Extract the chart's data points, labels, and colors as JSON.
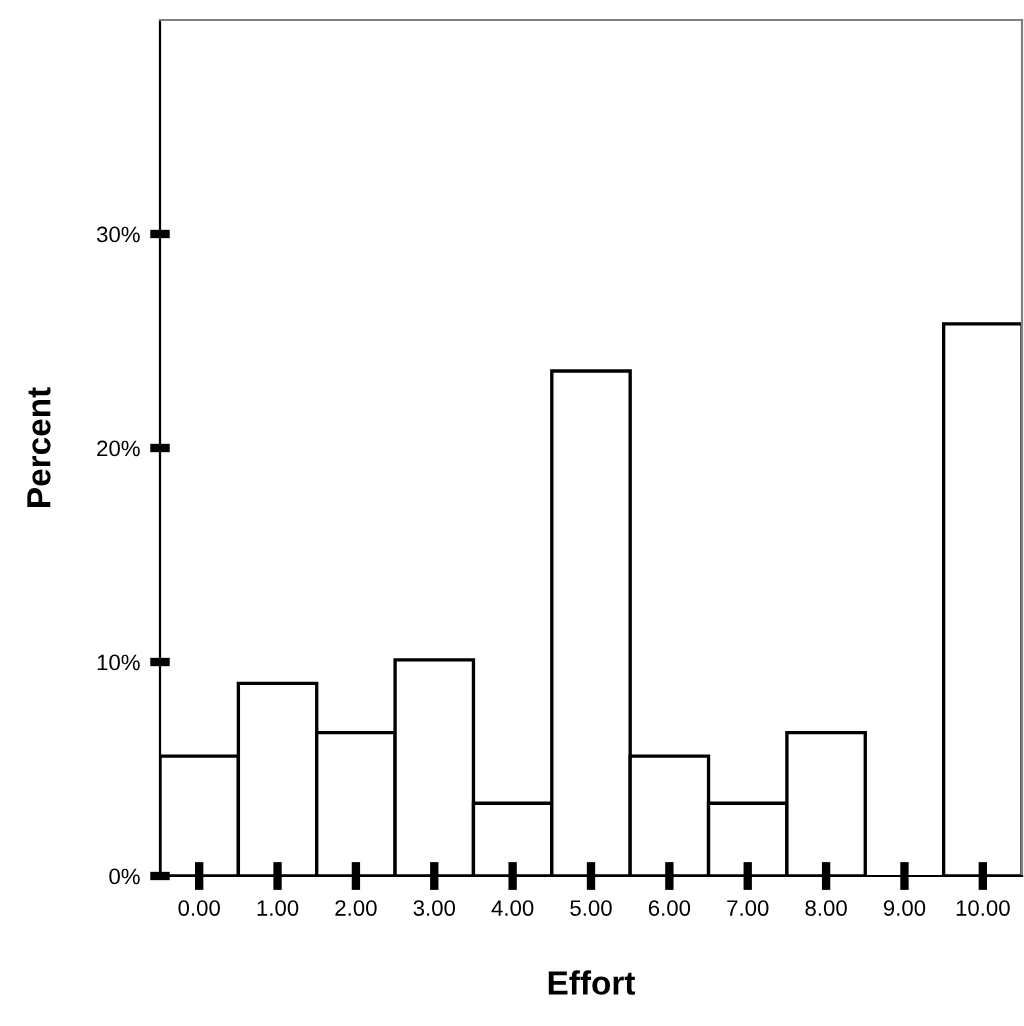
{
  "chart_data": {
    "type": "bar",
    "xlabel": "Effort",
    "ylabel": "Percent",
    "categories": [
      "0.00",
      "1.00",
      "2.00",
      "3.00",
      "4.00",
      "5.00",
      "6.00",
      "7.00",
      "8.00",
      "9.00",
      "10.00"
    ],
    "values": [
      5.6,
      9.0,
      6.7,
      10.1,
      3.4,
      23.6,
      5.6,
      3.4,
      6.7,
      0,
      25.8
    ],
    "color": "#ffffff",
    "ylim": [
      0,
      40
    ],
    "yticks": [
      {
        "value": 0,
        "label": "0%"
      },
      {
        "value": 10,
        "label": "10%"
      },
      {
        "value": 20,
        "label": "20%"
      },
      {
        "value": 30,
        "label": "30%"
      }
    ],
    "grid": false,
    "legend": false
  }
}
